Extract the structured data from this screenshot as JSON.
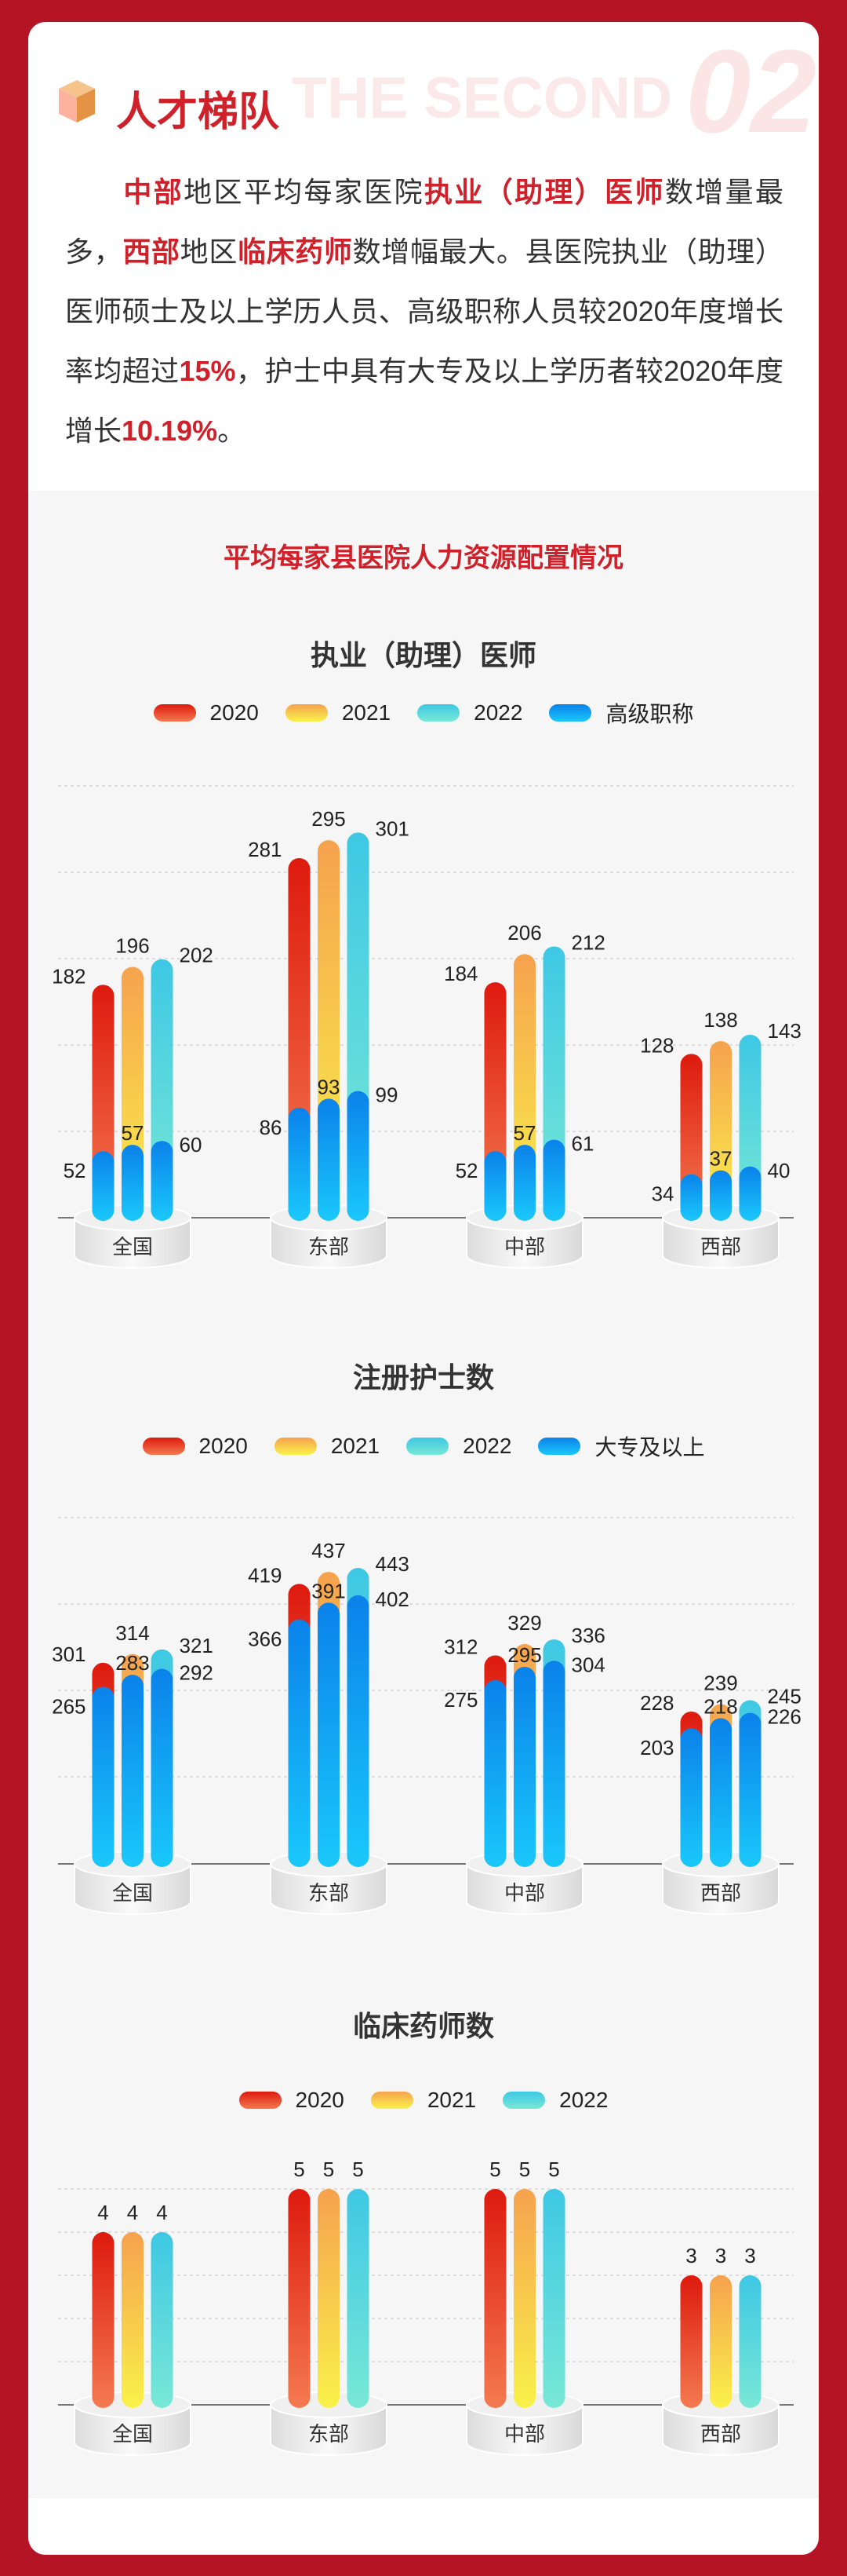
{
  "section": {
    "watermark": "THE SECOND",
    "number": "02",
    "title": "人才梯队"
  },
  "paragraph": [
    {
      "text": "中部",
      "em": true
    },
    {
      "text": "地区平均每家医院",
      "em": false
    },
    {
      "text": "执业（助理）医师",
      "em": true
    },
    {
      "text": "数增量最多，",
      "em": false
    },
    {
      "text": "西部",
      "em": true
    },
    {
      "text": "地区",
      "em": false
    },
    {
      "text": "临床药师",
      "em": true
    },
    {
      "text": "数增幅最大。县医院执业（助理）医师硕士及以上学历人员、高级职称人员较2020年度增长率均超过",
      "em": false
    },
    {
      "text": "15%",
      "em": true
    },
    {
      "text": "，护士中具有大专及以上学历者较2020年度增长",
      "em": false
    },
    {
      "text": "10.19%",
      "em": true
    },
    {
      "text": "。",
      "em": false
    }
  ],
  "main_title": "平均每家县医院人力资源配置情况",
  "colors": {
    "2020": "#dd1a0e",
    "2021": "#f6a24e",
    "2022": "#3ec8e4",
    "overlay": "#0a82ea",
    "accent": "#d0212b",
    "frame": "#b51425"
  },
  "chart_data": [
    {
      "type": "bar",
      "title": "执业（助理）医师",
      "categories": [
        "全国",
        "东部",
        "中部",
        "西部"
      ],
      "legend": [
        "2020",
        "2021",
        "2022",
        "高级职称"
      ],
      "series": [
        {
          "name": "2020",
          "values": [
            182,
            281,
            184,
            128
          ]
        },
        {
          "name": "2021",
          "values": [
            196,
            295,
            206,
            138
          ]
        },
        {
          "name": "2022",
          "values": [
            202,
            301,
            212,
            143
          ]
        }
      ],
      "overlay": {
        "name": "高级职称",
        "values": [
          [
            52,
            57,
            60
          ],
          [
            86,
            93,
            99
          ],
          [
            52,
            57,
            61
          ],
          [
            34,
            37,
            40
          ]
        ]
      }
    },
    {
      "type": "bar",
      "title": "注册护士数",
      "categories": [
        "全国",
        "东部",
        "中部",
        "西部"
      ],
      "legend": [
        "2020",
        "2021",
        "2022",
        "大专及以上"
      ],
      "series": [
        {
          "name": "2020",
          "values": [
            301,
            419,
            312,
            228
          ]
        },
        {
          "name": "2021",
          "values": [
            314,
            437,
            329,
            239
          ]
        },
        {
          "name": "2022",
          "values": [
            321,
            443,
            336,
            245
          ]
        }
      ],
      "overlay": {
        "name": "大专及以上",
        "values": [
          [
            265,
            283,
            292
          ],
          [
            366,
            391,
            402
          ],
          [
            275,
            295,
            304
          ],
          [
            203,
            218,
            226
          ]
        ]
      }
    },
    {
      "type": "bar",
      "title": "临床药师数",
      "categories": [
        "全国",
        "东部",
        "中部",
        "西部"
      ],
      "legend": [
        "2020",
        "2021",
        "2022"
      ],
      "series": [
        {
          "name": "2020",
          "values": [
            4,
            5,
            5,
            3
          ]
        },
        {
          "name": "2021",
          "values": [
            4,
            5,
            5,
            3
          ]
        },
        {
          "name": "2022",
          "values": [
            4,
            5,
            5,
            3
          ]
        }
      ]
    }
  ]
}
